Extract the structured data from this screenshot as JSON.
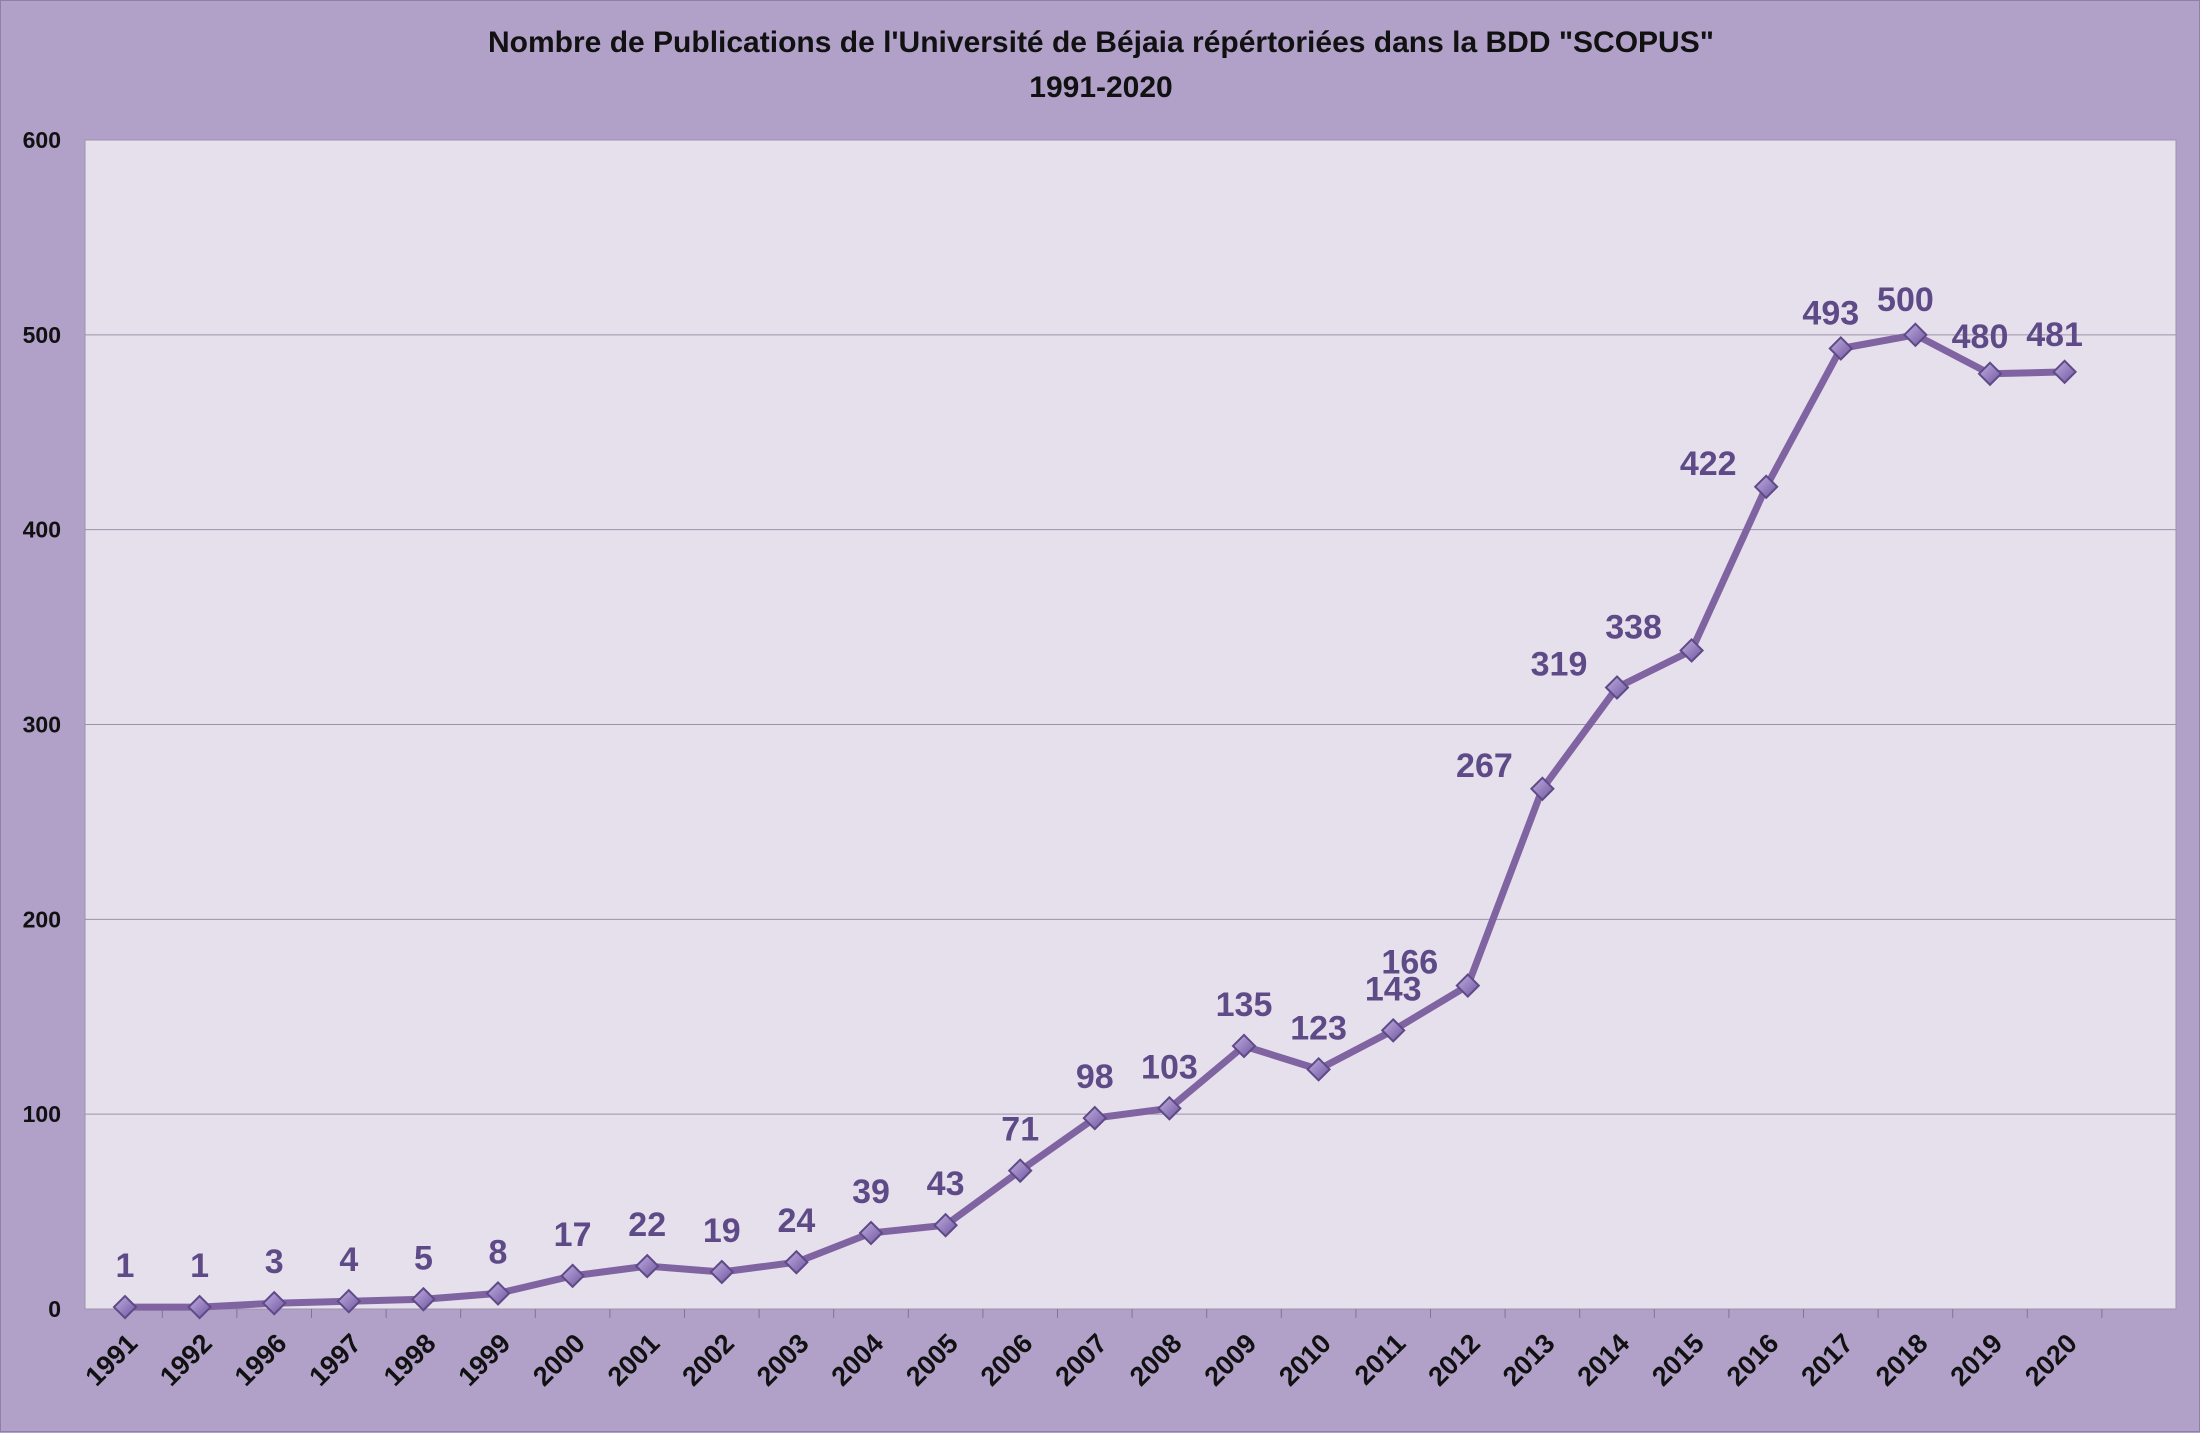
{
  "chart_data": {
    "type": "line",
    "title": "Nombre de Publications de l'Université de Béjaia répértoriées dans la BDD \"SCOPUS\"",
    "subtitle": "1991-2020",
    "xlabel": "",
    "ylabel": "",
    "ylim": [
      0,
      600
    ],
    "yticks": [
      "0",
      "100",
      "200",
      "300",
      "400",
      "500",
      "600"
    ],
    "grid": true,
    "legend": "none",
    "categories": [
      "1991",
      "1992",
      "1996",
      "1997",
      "1998",
      "1999",
      "2000",
      "2001",
      "2002",
      "2003",
      "2004",
      "2005",
      "2006",
      "2007",
      "2008",
      "2009",
      "2010",
      "2011",
      "2012",
      "2013",
      "2014",
      "2015",
      "2016",
      "2017",
      "2018",
      "2019",
      "2020"
    ],
    "series": [
      {
        "values": [
          1,
          1,
          3,
          4,
          5,
          8,
          17,
          22,
          19,
          24,
          39,
          43,
          71,
          98,
          103,
          135,
          123,
          143,
          166,
          267,
          319,
          338,
          422,
          493,
          500,
          480,
          481
        ]
      }
    ],
    "colors": {
      "background": "#b1a1c9",
      "plot_area": "#e6e0ed",
      "line": "#8064a2",
      "marker_fill": "#9b7fc6",
      "marker_stroke": "#5e4a86",
      "data_label": "#5e4a86",
      "gridline": "#9c93a8"
    }
  }
}
